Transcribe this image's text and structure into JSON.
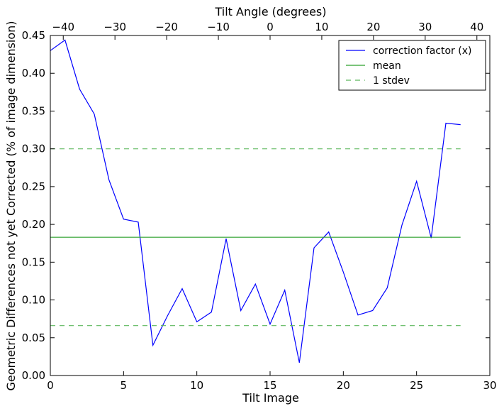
{
  "chart_data": {
    "type": "line",
    "xlabel": "Tilt Image",
    "ylabel": "Geometric Differences not yet Corrected (% of image dimension)",
    "x2label": "Tilt Angle (degrees)",
    "xlim": [
      0,
      30
    ],
    "ylim": [
      0,
      0.45
    ],
    "x2lim": [
      -42.5,
      42.5
    ],
    "xticks": [
      0,
      5,
      10,
      15,
      20,
      25,
      30
    ],
    "xtick_labels": [
      "0",
      "5",
      "10",
      "15",
      "20",
      "25",
      "30"
    ],
    "yticks": [
      0.0,
      0.05,
      0.1,
      0.15,
      0.2,
      0.25,
      0.3,
      0.35,
      0.4,
      0.45
    ],
    "ytick_labels": [
      "0.00",
      "0.05",
      "0.10",
      "0.15",
      "0.20",
      "0.25",
      "0.30",
      "0.35",
      "0.40",
      "0.45"
    ],
    "x2ticks": [
      -40,
      -30,
      -20,
      -10,
      0,
      10,
      20,
      30,
      40
    ],
    "x2tick_labels": [
      "−40",
      "−30",
      "−20",
      "−10",
      "0",
      "10",
      "20",
      "30",
      "40"
    ],
    "grid": false,
    "legend_position": "top-right",
    "series": [
      {
        "name": "correction factor (x)",
        "color": "#0000ff",
        "style": "solid",
        "x": [
          0,
          1,
          2,
          3,
          4,
          5,
          6,
          7,
          8,
          9,
          10,
          11,
          12,
          13,
          14,
          15,
          16,
          17,
          18,
          19,
          20,
          21,
          22,
          23,
          24,
          25,
          26,
          27,
          28
        ],
        "values": [
          0.43,
          0.444,
          0.379,
          0.346,
          0.259,
          0.207,
          0.203,
          0.04,
          0.079,
          0.115,
          0.071,
          0.084,
          0.181,
          0.086,
          0.121,
          0.068,
          0.113,
          0.017,
          0.169,
          0.19,
          0.137,
          0.08,
          0.086,
          0.116,
          0.199,
          0.257,
          0.182,
          0.334,
          0.332
        ]
      },
      {
        "name": "mean",
        "color": "#2ca02c",
        "style": "solid",
        "x": [
          0,
          28
        ],
        "values": [
          0.183,
          0.183
        ]
      },
      {
        "name": "1 stdev",
        "color": "#5cb85c",
        "style": "dashed",
        "x": [
          0,
          28
        ],
        "values": [
          0.3,
          0.3
        ]
      },
      {
        "name": "",
        "color": "#5cb85c",
        "style": "dashed",
        "x": [
          0,
          28
        ],
        "values": [
          0.066,
          0.066
        ]
      }
    ]
  }
}
